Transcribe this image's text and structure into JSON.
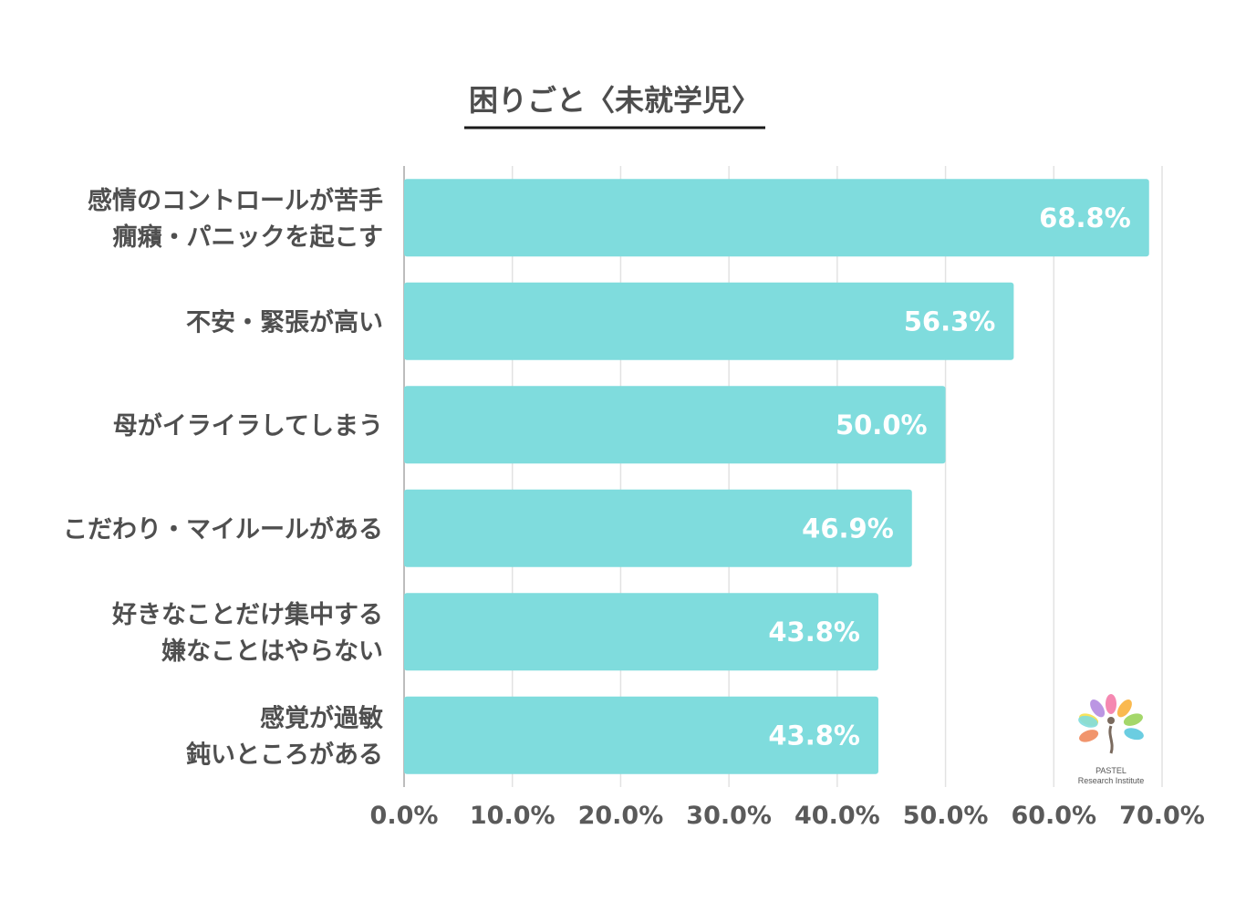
{
  "chart_data": {
    "type": "bar",
    "orientation": "horizontal",
    "title": "困りごと〈未就学児〉",
    "categories": [
      [
        "感情のコントロールが苦手",
        "癇癪・パニックを起こす"
      ],
      [
        "不安・緊張が高い"
      ],
      [
        "母がイライラしてしまう"
      ],
      [
        "こだわり・マイルールがある"
      ],
      [
        "好きなことだけ集中する",
        "嫌なことはやらない"
      ],
      [
        "感覚が過敏",
        "鈍いところがある"
      ]
    ],
    "values": [
      68.8,
      56.3,
      50.0,
      46.9,
      43.8,
      43.8
    ],
    "value_labels": [
      "68.8%",
      "56.3%",
      "50.0%",
      "46.9%",
      "43.8%",
      "43.8%"
    ],
    "xlim": [
      0,
      70
    ],
    "x_ticks": [
      0,
      10,
      20,
      30,
      40,
      50,
      60,
      70
    ],
    "x_tick_labels": [
      "0.0%",
      "10.0%",
      "20.0%",
      "30.0%",
      "40.0%",
      "50.0%",
      "60.0%",
      "70.0%"
    ],
    "grid": true,
    "bar_color": "#7fdcdd",
    "grid_color": "#e2e2e2"
  },
  "logo": {
    "line1": "PASTEL",
    "line2": "Research Institute",
    "petal_colors": [
      "#f47ba8",
      "#f9b13c",
      "#9ad35a",
      "#5bc8de",
      "#b48be0",
      "#f6e04a",
      "#7fdcdd",
      "#f08a5d"
    ]
  }
}
